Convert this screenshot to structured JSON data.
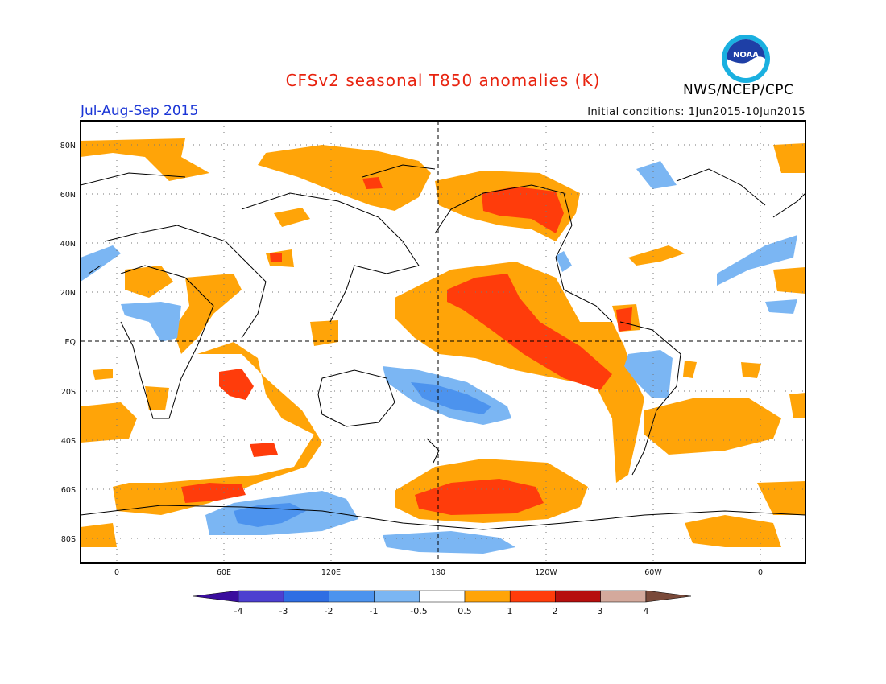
{
  "header": {
    "title": "CFSv2 seasonal T850 anomalies (K)",
    "period": "Jul-Aug-Sep 2015",
    "initial_conditions": "Initial conditions: 1Jun2015-10Jun2015",
    "agency": "NWS/NCEP/CPC",
    "logo_text": "NOAA"
  },
  "map": {
    "lat_ticks": [
      "80N",
      "60N",
      "40N",
      "20N",
      "EQ",
      "20S",
      "40S",
      "60S",
      "80S"
    ],
    "lon_ticks": [
      "0",
      "60E",
      "120E",
      "180",
      "120W",
      "60W",
      "0"
    ]
  },
  "colorbar": {
    "labels": [
      "-4",
      "-3",
      "-2",
      "-1",
      "-0.5",
      "0.5",
      "1",
      "2",
      "3",
      "4"
    ],
    "colors": [
      "#3a0d9e",
      "#4d3fd0",
      "#2f6ee3",
      "#4c93ee",
      "#7bb6f3",
      "#ffffff",
      "#ffa408",
      "#ff3c0b",
      "#b60f0d",
      "#d4a99c",
      "#7a4a3a"
    ]
  }
}
